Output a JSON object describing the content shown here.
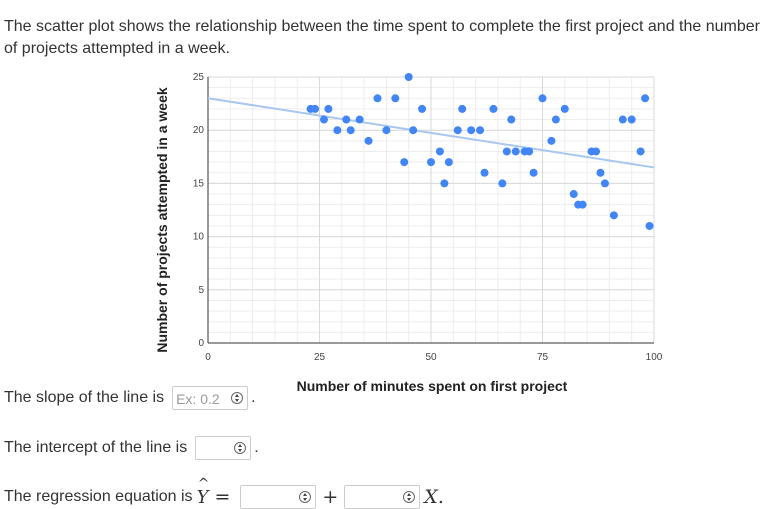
{
  "question": {
    "text": "The scatter plot shows the relationship between the time spent to complete the first project and the number of projects attempted in a week."
  },
  "answers": {
    "slope_label": "The slope of the line is",
    "slope_placeholder": "Ex: 0.2",
    "intercept_label": "The intercept of the line is",
    "regression_label": "The regression equation is",
    "yhat_symbol": "Y",
    "equals": "=",
    "plus": "+",
    "x_var": "X",
    "period": "."
  },
  "chart_data": {
    "type": "scatter",
    "title": "",
    "xlabel": "Number of minutes spent on first project",
    "ylabel": "Number of projects attempted in a week",
    "xlim": [
      0,
      100
    ],
    "ylim": [
      0,
      25
    ],
    "x_ticks": [
      0,
      25,
      50,
      75,
      100
    ],
    "y_ticks": [
      0,
      5,
      10,
      15,
      20,
      25
    ],
    "grid": true,
    "point_color": "#4285f4",
    "trendline_color": "#a8c7f0",
    "trendline": {
      "x": [
        0,
        100
      ],
      "y": [
        23,
        16.5
      ]
    },
    "points": [
      {
        "x": 23,
        "y": 22
      },
      {
        "x": 24,
        "y": 22
      },
      {
        "x": 26,
        "y": 21
      },
      {
        "x": 27,
        "y": 22
      },
      {
        "x": 29,
        "y": 20
      },
      {
        "x": 31,
        "y": 21
      },
      {
        "x": 32,
        "y": 20
      },
      {
        "x": 34,
        "y": 21
      },
      {
        "x": 36,
        "y": 19
      },
      {
        "x": 38,
        "y": 23
      },
      {
        "x": 40,
        "y": 20
      },
      {
        "x": 42,
        "y": 23
      },
      {
        "x": 44,
        "y": 17
      },
      {
        "x": 45,
        "y": 25
      },
      {
        "x": 46,
        "y": 20
      },
      {
        "x": 48,
        "y": 22
      },
      {
        "x": 50,
        "y": 17
      },
      {
        "x": 52,
        "y": 18
      },
      {
        "x": 53,
        "y": 15
      },
      {
        "x": 54,
        "y": 17
      },
      {
        "x": 56,
        "y": 20
      },
      {
        "x": 57,
        "y": 22
      },
      {
        "x": 59,
        "y": 20
      },
      {
        "x": 61,
        "y": 20
      },
      {
        "x": 62,
        "y": 16
      },
      {
        "x": 64,
        "y": 22
      },
      {
        "x": 66,
        "y": 15
      },
      {
        "x": 67,
        "y": 18
      },
      {
        "x": 68,
        "y": 21
      },
      {
        "x": 69,
        "y": 18
      },
      {
        "x": 71,
        "y": 18
      },
      {
        "x": 72,
        "y": 18
      },
      {
        "x": 73,
        "y": 16
      },
      {
        "x": 75,
        "y": 23
      },
      {
        "x": 77,
        "y": 19
      },
      {
        "x": 78,
        "y": 21
      },
      {
        "x": 80,
        "y": 22
      },
      {
        "x": 82,
        "y": 14
      },
      {
        "x": 83,
        "y": 13
      },
      {
        "x": 84,
        "y": 13
      },
      {
        "x": 86,
        "y": 18
      },
      {
        "x": 87,
        "y": 18
      },
      {
        "x": 88,
        "y": 16
      },
      {
        "x": 89,
        "y": 15
      },
      {
        "x": 91,
        "y": 12
      },
      {
        "x": 93,
        "y": 21
      },
      {
        "x": 95,
        "y": 21
      },
      {
        "x": 97,
        "y": 18
      },
      {
        "x": 98,
        "y": 23
      },
      {
        "x": 99,
        "y": 11
      }
    ]
  }
}
